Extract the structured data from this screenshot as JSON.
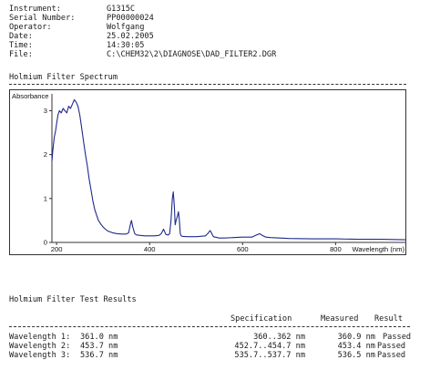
{
  "info": [
    {
      "label": "Instrument:",
      "value": "G1315C"
    },
    {
      "label": "Serial Number:",
      "value": "PP00000024"
    },
    {
      "label": "Operator:",
      "value": "Wolfgang"
    },
    {
      "label": "Date:",
      "value": "25.02.2005"
    },
    {
      "label": "Time:",
      "value": "14:30:05"
    },
    {
      "label": "File:",
      "value": "C:\\CHEM32\\2\\DIAGNOSE\\DAD_FILTER2.DGR"
    }
  ],
  "spectrum_title": "Holmium Filter Spectrum",
  "results_title": "Holmium Filter Test Results",
  "results_header": {
    "spec": "Specification",
    "measured": "Measured",
    "result": "Result"
  },
  "results": [
    {
      "name": "Wavelength 1:",
      "nominal": "361.0 nm",
      "spec": "360..362 nm",
      "measured": "360.9 nm",
      "result": "Passed"
    },
    {
      "name": "Wavelength 2:",
      "nominal": "453.7 nm",
      "spec": "452.7..454.7 nm",
      "measured": "453.4 nm",
      "result": "Passed"
    },
    {
      "name": "Wavelength 3:",
      "nominal": "536.7 nm",
      "spec": "535.7..537.7 nm",
      "measured": "536.5 nm",
      "result": "Passed"
    }
  ],
  "chart_data": {
    "type": "line",
    "ylabel": "Absorbance",
    "xlabel": "Wavelength (nm)",
    "xlim": [
      190,
      950
    ],
    "ylim": [
      0,
      3.3
    ],
    "xticks": [
      200,
      400,
      600,
      800
    ],
    "yticks": [
      0,
      1,
      2,
      3
    ],
    "grid": false,
    "series": [
      {
        "color": "#1f2a8c",
        "x": [
          190,
          192,
          195,
          198,
          200,
          203,
          206,
          210,
          214,
          218,
          222,
          226,
          230,
          234,
          238,
          242,
          246,
          250,
          254,
          258,
          262,
          266,
          270,
          274,
          278,
          282,
          286,
          290,
          295,
          300,
          305,
          310,
          320,
          330,
          340,
          350,
          355,
          358,
          361,
          364,
          368,
          372,
          380,
          390,
          400,
          410,
          420,
          425,
          430,
          435,
          440,
          443,
          446,
          449,
          451,
          453,
          455,
          457,
          460,
          462,
          464,
          466,
          468,
          470,
          480,
          490,
          500,
          510,
          520,
          525,
          530,
          533,
          536,
          539,
          542,
          545,
          550,
          560,
          580,
          600,
          620,
          630,
          637,
          642,
          650,
          660,
          680,
          700,
          750,
          800,
          850,
          900,
          950
        ],
        "y": [
          1.85,
          2.1,
          2.4,
          2.55,
          2.7,
          2.9,
          3.0,
          2.95,
          3.05,
          3.0,
          2.95,
          3.1,
          3.05,
          3.15,
          3.25,
          3.2,
          3.1,
          2.9,
          2.6,
          2.3,
          2.0,
          1.75,
          1.45,
          1.2,
          0.95,
          0.75,
          0.62,
          0.5,
          0.42,
          0.35,
          0.3,
          0.26,
          0.22,
          0.2,
          0.19,
          0.19,
          0.22,
          0.38,
          0.5,
          0.35,
          0.2,
          0.17,
          0.16,
          0.15,
          0.15,
          0.15,
          0.16,
          0.2,
          0.3,
          0.18,
          0.17,
          0.2,
          0.5,
          1.0,
          1.15,
          0.85,
          0.4,
          0.5,
          0.6,
          0.7,
          0.5,
          0.2,
          0.15,
          0.14,
          0.13,
          0.13,
          0.13,
          0.14,
          0.15,
          0.2,
          0.27,
          0.22,
          0.15,
          0.12,
          0.12,
          0.11,
          0.1,
          0.1,
          0.11,
          0.12,
          0.12,
          0.17,
          0.2,
          0.16,
          0.12,
          0.11,
          0.1,
          0.09,
          0.08,
          0.08,
          0.07,
          0.07,
          0.06
        ]
      }
    ]
  }
}
